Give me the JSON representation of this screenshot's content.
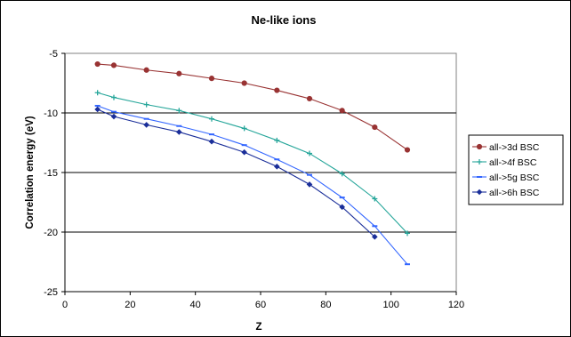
{
  "chart_data": {
    "type": "line",
    "title": "Ne-like ions",
    "xlabel": "Z",
    "ylabel": "Correlation energy (eV)",
    "xlim": [
      0,
      120
    ],
    "ylim": [
      -25,
      -5
    ],
    "xticks": [
      0,
      20,
      40,
      60,
      80,
      100,
      120
    ],
    "yticks": [
      -5,
      -10,
      -15,
      -20,
      -25
    ],
    "grid": "horizontal",
    "legend_position": "right",
    "series": [
      {
        "name": "all->3d BSC",
        "color": "#993333",
        "marker": "circle",
        "x": [
          10,
          15,
          25,
          35,
          45,
          55,
          65,
          75,
          85,
          95,
          105
        ],
        "y": [
          -5.9,
          -6.0,
          -6.4,
          -6.7,
          -7.1,
          -7.5,
          -8.1,
          -8.8,
          -9.8,
          -11.2,
          -13.1
        ]
      },
      {
        "name": "all->4f BSC",
        "color": "#26a69a",
        "marker": "plus",
        "x": [
          10,
          15,
          25,
          35,
          45,
          55,
          65,
          75,
          85,
          95,
          105
        ],
        "y": [
          -8.3,
          -8.7,
          -9.3,
          -9.8,
          -10.5,
          -11.3,
          -12.3,
          -13.4,
          -15.1,
          -17.2,
          -20.1
        ]
      },
      {
        "name": "all->5g BSC",
        "color": "#3366ff",
        "marker": "dash",
        "x": [
          10,
          15,
          25,
          35,
          45,
          55,
          65,
          75,
          85,
          95,
          105
        ],
        "y": [
          -9.4,
          -9.9,
          -10.5,
          -11.1,
          -11.8,
          -12.7,
          -13.9,
          -15.2,
          -17.1,
          -19.5,
          -22.7
        ]
      },
      {
        "name": "all->6h BSC",
        "color": "#1a2e99",
        "marker": "diamond",
        "x": [
          10,
          15,
          25,
          35,
          45,
          55,
          65,
          75,
          85,
          95
        ],
        "y": [
          -9.7,
          -10.3,
          -11.0,
          -11.6,
          -12.4,
          -13.3,
          -14.5,
          -16.0,
          -17.9,
          -20.4
        ]
      }
    ]
  }
}
